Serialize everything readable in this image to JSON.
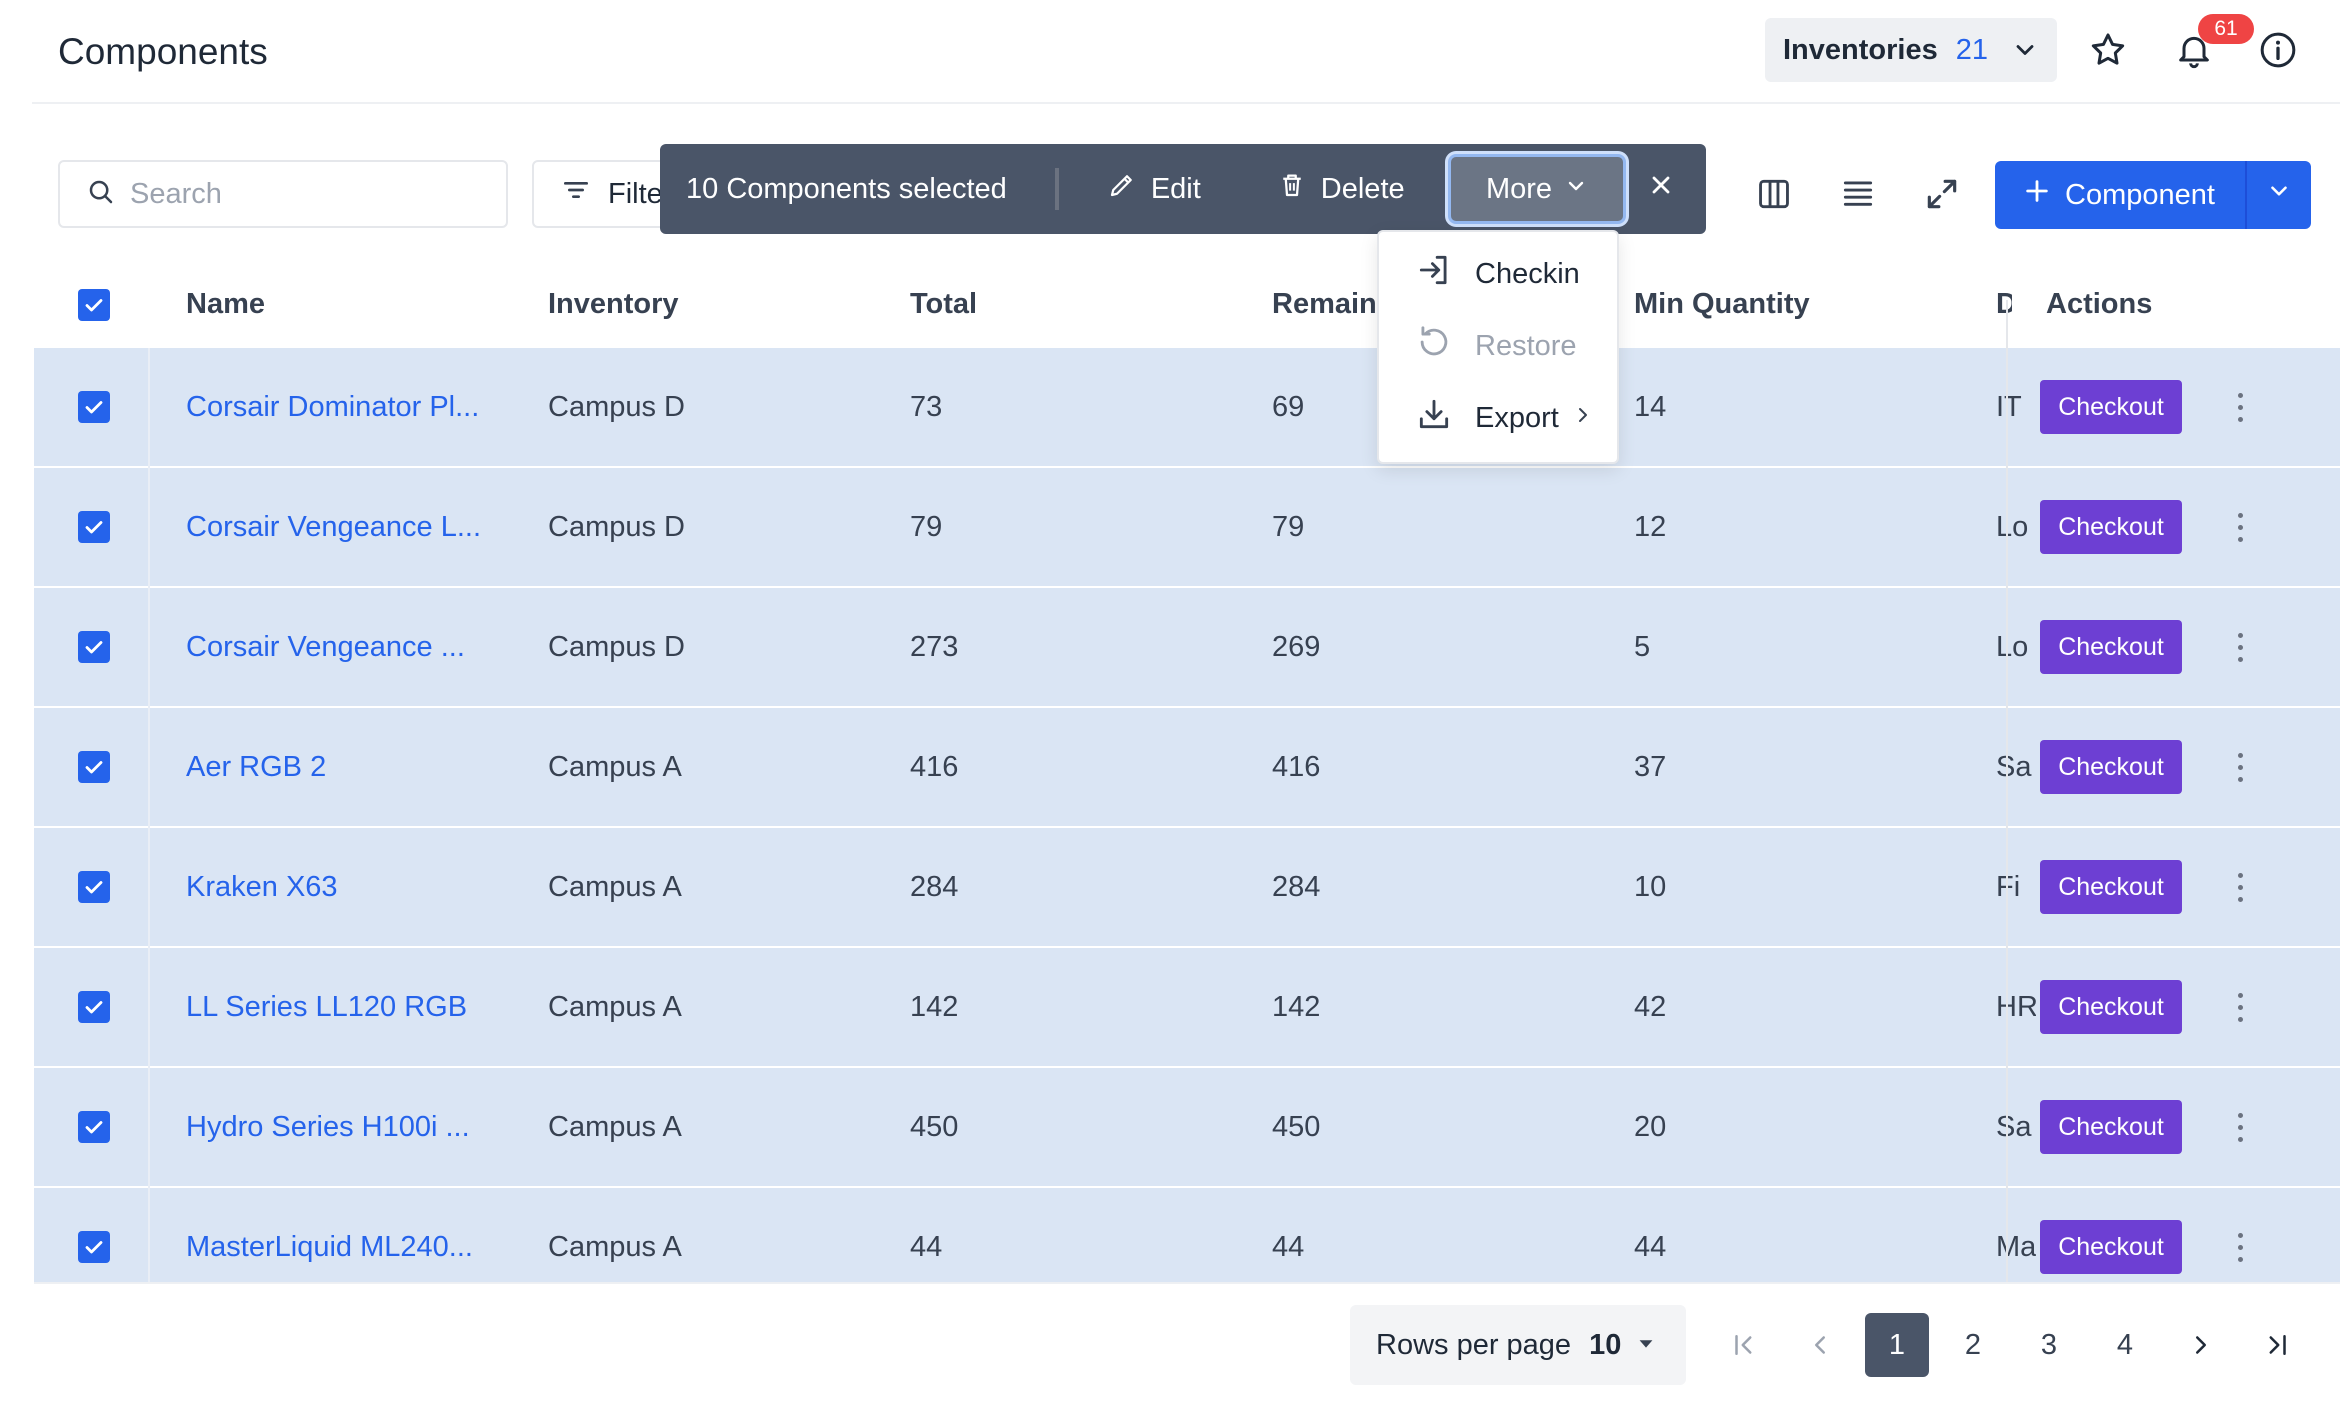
{
  "header": {
    "title": "Components",
    "inventory_label": "Inventories",
    "inventory_count": "21",
    "notification_count": "61"
  },
  "toolbar": {
    "search_placeholder": "Search",
    "filter_label": "Filters",
    "add_label": "Component"
  },
  "bulk": {
    "selected_text": "10 Components selected",
    "edit_label": "Edit",
    "delete_label": "Delete",
    "more_label": "More"
  },
  "menu": {
    "checkin": "Checkin",
    "restore": "Restore",
    "export": "Export"
  },
  "table": {
    "headers": {
      "name": "Name",
      "inventory": "Inventory",
      "total": "Total",
      "remaining": "Remaining",
      "min_quantity": "Min Quantity",
      "d": "D",
      "actions": "Actions"
    },
    "checkout_label": "Checkout",
    "rows": [
      {
        "name": "Corsair Dominator Pl...",
        "inventory": "Campus D",
        "total": "73",
        "remaining": "69",
        "min": "14",
        "d": "IT"
      },
      {
        "name": "Corsair Vengeance L...",
        "inventory": "Campus D",
        "total": "79",
        "remaining": "79",
        "min": "12",
        "d": "Lo"
      },
      {
        "name": "Corsair Vengeance ...",
        "inventory": "Campus D",
        "total": "273",
        "remaining": "269",
        "min": "5",
        "d": "Lo"
      },
      {
        "name": "Aer RGB 2",
        "inventory": "Campus A",
        "total": "416",
        "remaining": "416",
        "min": "37",
        "d": "Sa"
      },
      {
        "name": "Kraken X63",
        "inventory": "Campus A",
        "total": "284",
        "remaining": "284",
        "min": "10",
        "d": "Fi"
      },
      {
        "name": "LL Series LL120 RGB",
        "inventory": "Campus A",
        "total": "142",
        "remaining": "142",
        "min": "42",
        "d": "HR"
      },
      {
        "name": "Hydro Series H100i ...",
        "inventory": "Campus A",
        "total": "450",
        "remaining": "450",
        "min": "20",
        "d": "Sa"
      },
      {
        "name": "MasterLiquid ML240...",
        "inventory": "Campus A",
        "total": "44",
        "remaining": "44",
        "min": "44",
        "d": "Ma"
      }
    ]
  },
  "footer": {
    "rows_per_page_label": "Rows per page",
    "rows_per_page_value": "10",
    "pages": [
      "1",
      "2",
      "3",
      "4"
    ],
    "current_page": "1"
  }
}
